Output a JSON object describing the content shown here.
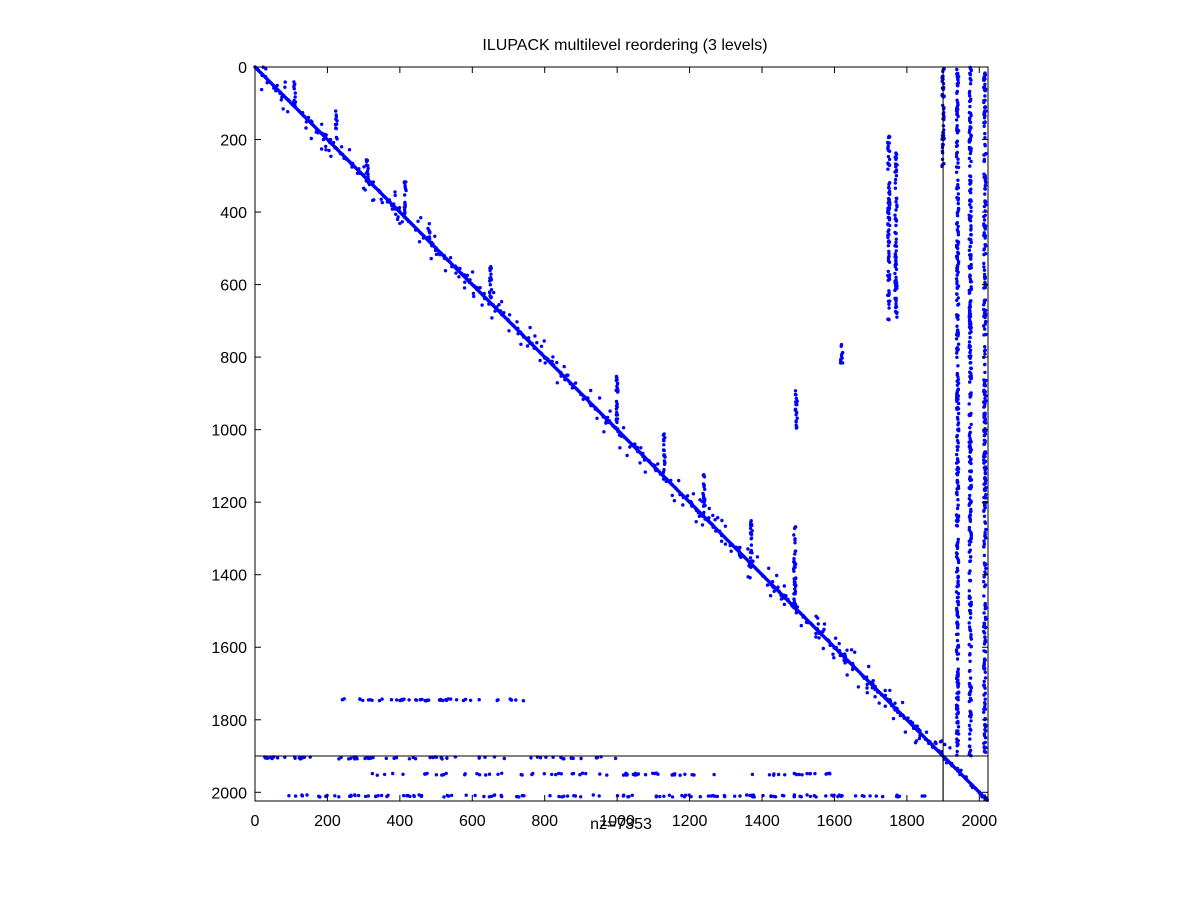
{
  "chart_data": {
    "type": "scatter",
    "title": "ILUPACK multilevel reordering (3 levels)",
    "xlabel": "nz=7353",
    "ylabel": "",
    "xlim": [
      0,
      2024
    ],
    "ylim": [
      0,
      2024
    ],
    "y_axis_reversed": true,
    "grid": false,
    "x_ticks": [
      0,
      200,
      400,
      600,
      800,
      1000,
      1200,
      1400,
      1600,
      1800,
      2000
    ],
    "y_ticks": [
      0,
      200,
      400,
      600,
      800,
      1000,
      1200,
      1400,
      1600,
      1800,
      2000
    ],
    "marker_color": "#0000ff",
    "nonzero_count": 7353,
    "level_boundaries": [
      1900,
      2013
    ],
    "diagonal": {
      "from": 0,
      "to": 2024
    },
    "off_diagonal_clusters": [
      {
        "x": 110,
        "y_from": 40,
        "y_to": 110
      },
      {
        "x": 225,
        "y_from": 120,
        "y_to": 200
      },
      {
        "x": 310,
        "y_from": 250,
        "y_to": 320
      },
      {
        "x": 415,
        "y_from": 315,
        "y_to": 420
      },
      {
        "x": 480,
        "y_from": 420,
        "y_to": 480
      },
      {
        "x": 650,
        "y_from": 540,
        "y_to": 640
      },
      {
        "x": 1000,
        "y_from": 850,
        "y_to": 1000
      },
      {
        "x": 1130,
        "y_from": 1010,
        "y_to": 1120
      },
      {
        "x": 1240,
        "y_from": 1120,
        "y_to": 1250
      },
      {
        "x": 1370,
        "y_from": 1250,
        "y_to": 1380
      },
      {
        "x": 1490,
        "y_from": 1260,
        "y_to": 1500
      },
      {
        "x": 1750,
        "y_from": 190,
        "y_to": 700
      },
      {
        "x": 1770,
        "y_from": 230,
        "y_to": 690
      },
      {
        "x": 1620,
        "y_from": 760,
        "y_to": 820
      },
      {
        "x": 1495,
        "y_from": 880,
        "y_to": 1000
      },
      {
        "x": 1900,
        "y_from": 0,
        "y_to": 280
      },
      {
        "x": 1940,
        "y_from": 0,
        "y_to": 1900
      },
      {
        "x": 1975,
        "y_from": 0,
        "y_to": 1900
      },
      {
        "x": 2015,
        "y_from": 0,
        "y_to": 1900
      }
    ],
    "row_bands": [
      {
        "y": 1745,
        "x_from": 240,
        "x_to": 750
      },
      {
        "y": 1905,
        "x_from": 0,
        "x_to": 1000
      },
      {
        "y": 1950,
        "x_from": 300,
        "x_to": 1600
      },
      {
        "y": 2010,
        "x_from": 80,
        "x_to": 1850
      }
    ]
  }
}
